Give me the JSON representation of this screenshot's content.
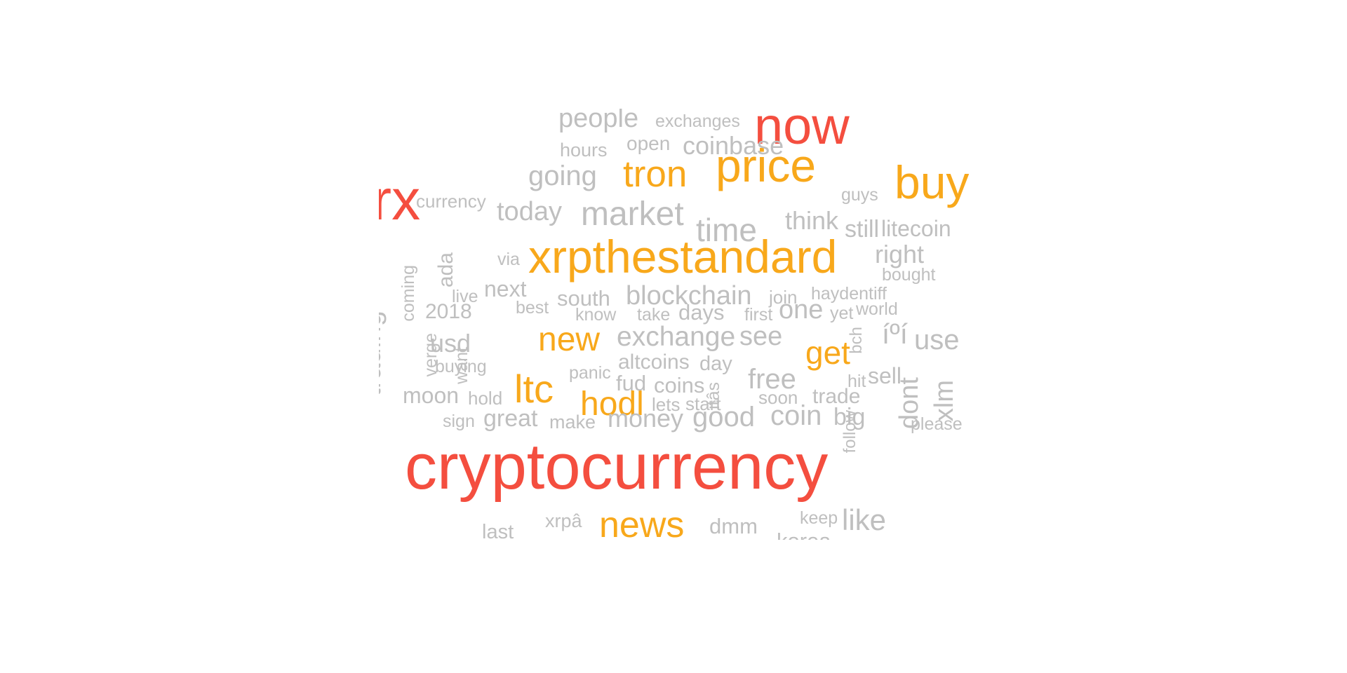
{
  "chart_data": {
    "type": "wordcloud",
    "title": "",
    "colors": {
      "high": "#f44e3f",
      "mid": "#f8a81b",
      "low": "#bfbfbf"
    },
    "words": [
      {
        "text": "cryptocurrency",
        "tier": "high"
      },
      {
        "text": "trx",
        "tier": "high"
      },
      {
        "text": "now",
        "tier": "high"
      },
      {
        "text": "xrpthestandard",
        "tier": "mid"
      },
      {
        "text": "price",
        "tier": "mid"
      },
      {
        "text": "buy",
        "tier": "mid"
      },
      {
        "text": "tron",
        "tier": "mid"
      },
      {
        "text": "ltc",
        "tier": "mid"
      },
      {
        "text": "hodl",
        "tier": "mid"
      },
      {
        "text": "new",
        "tier": "mid"
      },
      {
        "text": "get",
        "tier": "mid"
      },
      {
        "text": "news",
        "tier": "mid"
      },
      {
        "text": "people",
        "tier": "low"
      },
      {
        "text": "exchanges",
        "tier": "low"
      },
      {
        "text": "hours",
        "tier": "low"
      },
      {
        "text": "open",
        "tier": "low"
      },
      {
        "text": "coinbase",
        "tier": "low"
      },
      {
        "text": "going",
        "tier": "low"
      },
      {
        "text": "guys",
        "tier": "low"
      },
      {
        "text": "currency",
        "tier": "low"
      },
      {
        "text": "today",
        "tier": "low"
      },
      {
        "text": "market",
        "tier": "low"
      },
      {
        "text": "time",
        "tier": "low"
      },
      {
        "text": "think",
        "tier": "low"
      },
      {
        "text": "still",
        "tier": "low"
      },
      {
        "text": "litecoin",
        "tier": "low"
      },
      {
        "text": "coming",
        "tier": "low"
      },
      {
        "text": "ada",
        "tier": "low"
      },
      {
        "text": "via",
        "tier": "low"
      },
      {
        "text": "right",
        "tier": "low"
      },
      {
        "text": "bought",
        "tier": "low"
      },
      {
        "text": "trading",
        "tier": "low"
      },
      {
        "text": "next",
        "tier": "low"
      },
      {
        "text": "live",
        "tier": "low"
      },
      {
        "text": "south",
        "tier": "low"
      },
      {
        "text": "blockchain",
        "tier": "low"
      },
      {
        "text": "join",
        "tier": "low"
      },
      {
        "text": "haydentiff",
        "tier": "low"
      },
      {
        "text": "2018",
        "tier": "low"
      },
      {
        "text": "best",
        "tier": "low"
      },
      {
        "text": "know",
        "tier": "low"
      },
      {
        "text": "take",
        "tier": "low"
      },
      {
        "text": "days",
        "tier": "low"
      },
      {
        "text": "first",
        "tier": "low"
      },
      {
        "text": "one",
        "tier": "low"
      },
      {
        "text": "yet",
        "tier": "low"
      },
      {
        "text": "world",
        "tier": "low"
      },
      {
        "text": "verge",
        "tier": "low"
      },
      {
        "text": "usd",
        "tier": "low"
      },
      {
        "text": "want",
        "tier": "low"
      },
      {
        "text": "exchange",
        "tier": "low"
      },
      {
        "text": "see",
        "tier": "low"
      },
      {
        "text": "bch",
        "tier": "low"
      },
      {
        "text": "íºí",
        "tier": "low"
      },
      {
        "text": "use",
        "tier": "low"
      },
      {
        "text": "buying",
        "tier": "low"
      },
      {
        "text": "altcoins",
        "tier": "low"
      },
      {
        "text": "day",
        "tier": "low"
      },
      {
        "text": "panic",
        "tier": "low"
      },
      {
        "text": "fud",
        "tier": "low"
      },
      {
        "text": "coins",
        "tier": "low"
      },
      {
        "text": "itâs",
        "tier": "low"
      },
      {
        "text": "free",
        "tier": "low"
      },
      {
        "text": "hit",
        "tier": "low"
      },
      {
        "text": "sell",
        "tier": "low"
      },
      {
        "text": "dont",
        "tier": "low"
      },
      {
        "text": "xlm",
        "tier": "low"
      },
      {
        "text": "moon",
        "tier": "low"
      },
      {
        "text": "hold",
        "tier": "low"
      },
      {
        "text": "lets",
        "tier": "low"
      },
      {
        "text": "start",
        "tier": "low"
      },
      {
        "text": "soon",
        "tier": "low"
      },
      {
        "text": "trade",
        "tier": "low"
      },
      {
        "text": "follow",
        "tier": "low"
      },
      {
        "text": "sign",
        "tier": "low"
      },
      {
        "text": "great",
        "tier": "low"
      },
      {
        "text": "make",
        "tier": "low"
      },
      {
        "text": "money",
        "tier": "low"
      },
      {
        "text": "good",
        "tier": "low"
      },
      {
        "text": "coin",
        "tier": "low"
      },
      {
        "text": "big",
        "tier": "low"
      },
      {
        "text": "please",
        "tier": "low"
      },
      {
        "text": "last",
        "tier": "low"
      },
      {
        "text": "xrpâ",
        "tier": "low"
      },
      {
        "text": "dmm",
        "tier": "low"
      },
      {
        "text": "keep",
        "tier": "low"
      },
      {
        "text": "like",
        "tier": "low"
      },
      {
        "text": "korea",
        "tier": "low"
      }
    ]
  }
}
